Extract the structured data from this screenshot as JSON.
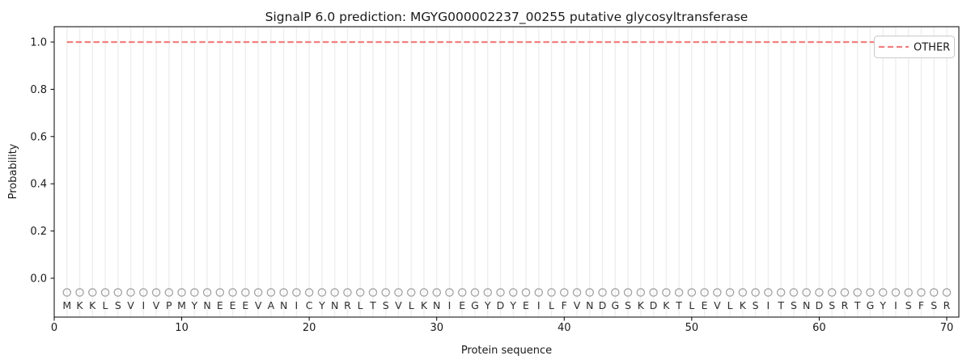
{
  "figure_title": "SignalP 6.0 prediction: MGYG000002237_00255 putative glycosyltransferase",
  "chart_data": {
    "type": "line",
    "title": "SignalP 6.0 prediction: MGYG000002237_00255 putative glycosyltransferase",
    "xlabel": "Protein sequence",
    "ylabel": "Probability",
    "xlim": [
      0,
      71
    ],
    "ylim": [
      -0.17,
      1.07
    ],
    "x_ticks": [
      0,
      10,
      20,
      30,
      40,
      50,
      60,
      70
    ],
    "y_ticks": [
      0.0,
      0.2,
      0.4,
      0.6,
      0.8,
      1.0
    ],
    "grid": {
      "vertical_per_residue": true,
      "horizontal": false
    },
    "legend": {
      "position": "upper-right",
      "entries": [
        {
          "label": "OTHER",
          "linestyle": "dashed",
          "color": "#f08080"
        }
      ]
    },
    "series": [
      {
        "name": "OTHER",
        "linestyle": "dashed",
        "color": "#f08080",
        "x_from": 1,
        "x_to": 70,
        "constant_y": 1.0,
        "note": "constant probability 1.0 across residues 1-70"
      }
    ],
    "sequence": "MKKLSVIVPMYNEEEVANICYNRLTSVLKNIEGYDYEILFVNDGSKDKTLEVLKSITSNDSRTGYISFSR",
    "sequence_markers": {
      "shape": "open-circle",
      "y_value": -0.06
    },
    "sequence_letter_y_value": -0.115
  },
  "colors": {
    "background": "#ffffff",
    "spine": "#000000",
    "grid": "#eeeeee",
    "other_line": "#f08080",
    "marker_stroke": "#a3a3a3",
    "sequence_letters": "#2e2e2e",
    "legend_border": "#c8c8c8",
    "legend_fill": "#ffffff"
  }
}
